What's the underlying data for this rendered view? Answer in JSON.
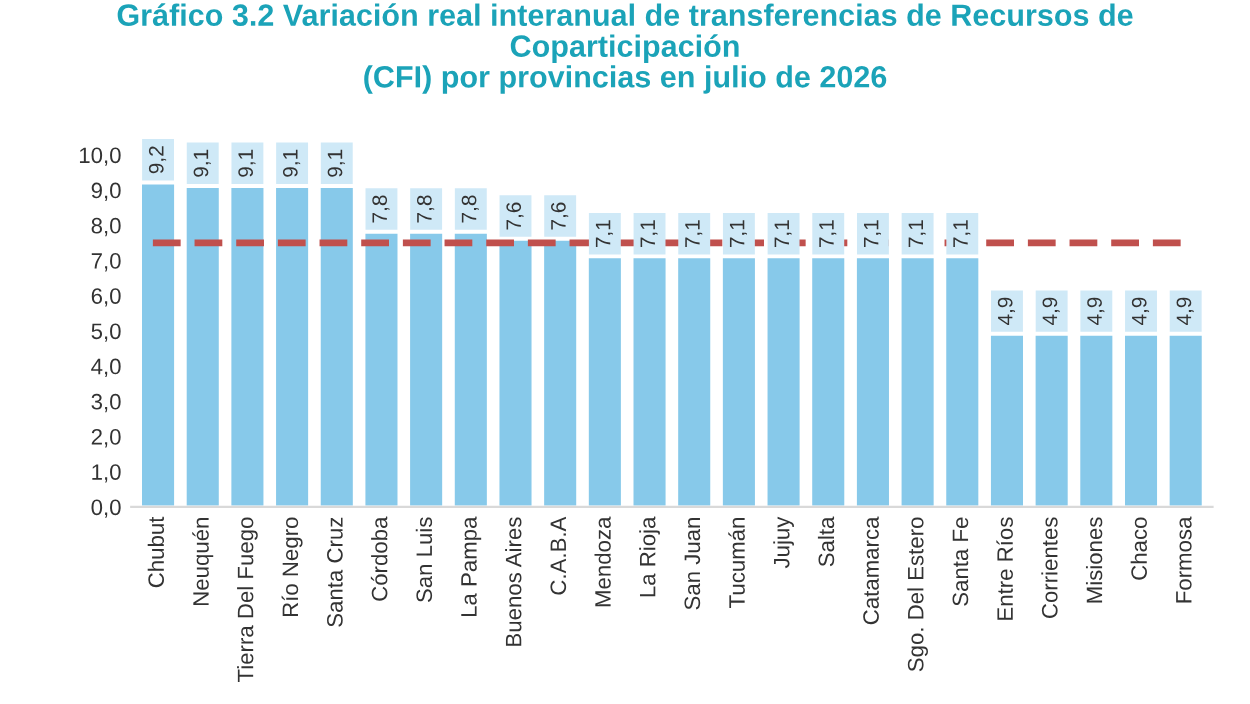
{
  "chart_data": {
    "type": "bar",
    "title": "Gráfico 3.2 Variación real interanual de transferencias de Recursos de\nCoparticipación\n(CFI) por provincias en julio de 2026",
    "categories": [
      "Chubut",
      "Neuquén",
      "Tierra Del Fuego",
      "Río Negro",
      "Santa Cruz",
      "Córdoba",
      "San Luis",
      "La Pampa",
      "Buenos Aires",
      "C.A.B.A",
      "Mendoza",
      "La Rioja",
      "San Juan",
      "Tucumán",
      "Jujuy",
      "Salta",
      "Catamarca",
      "Sgo. Del Estero",
      "Santa Fe",
      "Entre Ríos",
      "Corrientes",
      "Misiones",
      "Chaco",
      "Formosa"
    ],
    "values": [
      9.2,
      9.1,
      9.1,
      9.1,
      9.1,
      7.8,
      7.8,
      7.8,
      7.6,
      7.6,
      7.1,
      7.1,
      7.1,
      7.1,
      7.1,
      7.1,
      7.1,
      7.1,
      7.1,
      4.9,
      4.9,
      4.9,
      4.9,
      4.9
    ],
    "value_labels": [
      "9,2",
      "9,1",
      "9,1",
      "9,1",
      "9,1",
      "7,8",
      "7,8",
      "7,8",
      "7,6",
      "7,6",
      "7,1",
      "7,1",
      "7,1",
      "7,1",
      "7,1",
      "7,1",
      "7,1",
      "7,1",
      "7,1",
      "4,9",
      "4,9",
      "4,9",
      "4,9",
      "4,9"
    ],
    "color": "#87c9ea",
    "ylim": [
      0,
      10
    ],
    "yticks": [
      {
        "value": 0,
        "label": "0,0"
      },
      {
        "value": 1,
        "label": "1,0"
      },
      {
        "value": 2,
        "label": "2,0"
      },
      {
        "value": 3,
        "label": "3,0"
      },
      {
        "value": 4,
        "label": "4,0"
      },
      {
        "value": 5,
        "label": "5,0"
      },
      {
        "value": 6,
        "label": "6,0"
      },
      {
        "value": 7,
        "label": "7,0"
      },
      {
        "value": 8,
        "label": "8,0"
      },
      {
        "value": 9,
        "label": "9,0"
      },
      {
        "value": 10,
        "label": "10,0"
      }
    ],
    "ref_lines": [
      {
        "axis": "y",
        "value": 7.5,
        "label": null,
        "color": "#c0504d",
        "line_style": "dashed"
      }
    ],
    "grid": false,
    "legend": false
  }
}
